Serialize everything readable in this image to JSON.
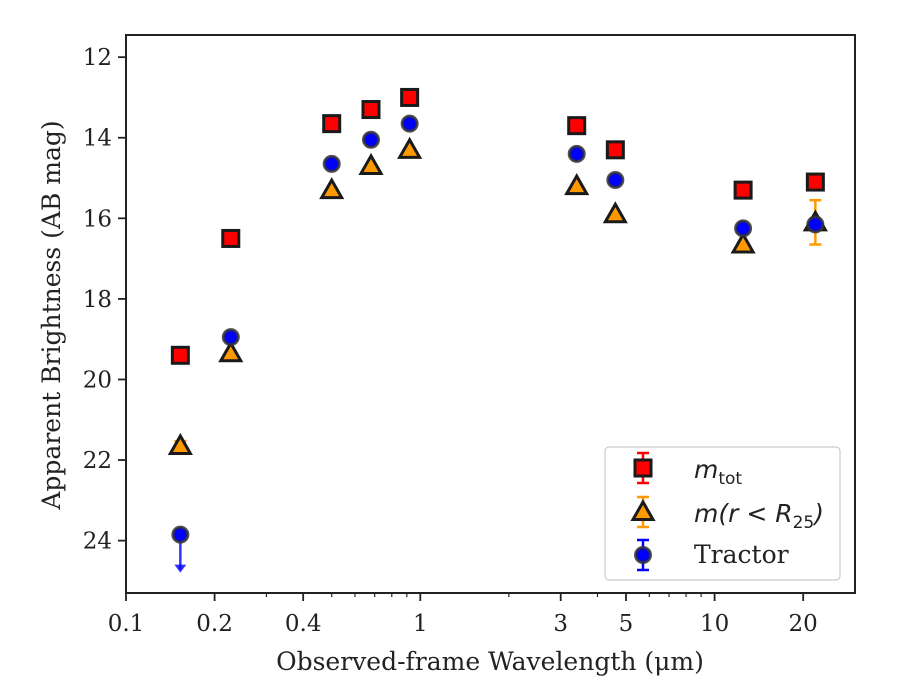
{
  "chart_data": {
    "type": "scatter",
    "title": "",
    "xlabel": "Observed-frame Wavelength (μm)",
    "ylabel": "Apparent Brightness (AB mag)",
    "xscale": "log",
    "xlim": [
      0.1,
      30
    ],
    "ylim": [
      25.3,
      11.45
    ],
    "y_inverted": true,
    "grid": false,
    "legend_position": "lower-right",
    "x_ticks": [
      0.1,
      0.2,
      0.4,
      1,
      3,
      5,
      10,
      20
    ],
    "x_tick_labels": [
      "0.1",
      "0.2",
      "0.4",
      "1",
      "3",
      "5",
      "10",
      "20"
    ],
    "y_ticks": [
      12,
      14,
      16,
      18,
      20,
      22,
      24
    ],
    "y_tick_labels": [
      "12",
      "14",
      "16",
      "18",
      "20",
      "22",
      "24"
    ],
    "series": [
      {
        "name": "m_tot",
        "marker": "square",
        "color": "#ff0000",
        "edge_color": "#1a1a1a",
        "points": [
          {
            "x": 0.153,
            "y": 19.4,
            "yerr": 0.05
          },
          {
            "x": 0.227,
            "y": 16.5,
            "yerr": 0.05
          },
          {
            "x": 0.5,
            "y": 13.65,
            "yerr": 0.03
          },
          {
            "x": 0.68,
            "y": 13.3,
            "yerr": 0.03
          },
          {
            "x": 0.92,
            "y": 13.0,
            "yerr": 0.03
          },
          {
            "x": 3.4,
            "y": 13.7,
            "yerr": 0.03
          },
          {
            "x": 4.6,
            "y": 14.3,
            "yerr": 0.03
          },
          {
            "x": 12.5,
            "y": 15.3,
            "yerr": 0.05
          },
          {
            "x": 22.0,
            "y": 15.1,
            "yerr": 0.08
          }
        ]
      },
      {
        "name": "m(r < R_25)",
        "marker": "triangle",
        "color": "#ff9900",
        "edge_color": "#1a1a1a",
        "points": [
          {
            "x": 0.153,
            "y": 21.65,
            "yerr": 0.12
          },
          {
            "x": 0.227,
            "y": 19.35,
            "yerr": 0.05
          },
          {
            "x": 0.5,
            "y": 15.3,
            "yerr": 0.03
          },
          {
            "x": 0.68,
            "y": 14.7,
            "yerr": 0.03
          },
          {
            "x": 0.92,
            "y": 14.3,
            "yerr": 0.03
          },
          {
            "x": 3.4,
            "y": 15.2,
            "yerr": 0.03
          },
          {
            "x": 4.6,
            "y": 15.9,
            "yerr": 0.03
          },
          {
            "x": 12.5,
            "y": 16.65,
            "yerr": 0.05
          },
          {
            "x": 22.0,
            "y": 16.1,
            "yerr": 0.55
          }
        ]
      },
      {
        "name": "Tractor",
        "marker": "circle",
        "color": "#0000ff",
        "edge_color": "#333333",
        "points": [
          {
            "x": 0.153,
            "y": 23.85,
            "upper_limit": true
          },
          {
            "x": 0.227,
            "y": 18.95,
            "yerr": 0.05
          },
          {
            "x": 0.5,
            "y": 14.65,
            "yerr": 0.03
          },
          {
            "x": 0.68,
            "y": 14.05,
            "yerr": 0.03
          },
          {
            "x": 0.92,
            "y": 13.65,
            "yerr": 0.03
          },
          {
            "x": 3.4,
            "y": 14.4,
            "yerr": 0.03
          },
          {
            "x": 4.6,
            "y": 15.05,
            "yerr": 0.03
          },
          {
            "x": 12.5,
            "y": 16.25,
            "yerr": 0.05
          },
          {
            "x": 22.0,
            "y": 16.15,
            "yerr": 0.08
          }
        ]
      }
    ]
  },
  "legend": {
    "items": [
      {
        "symbol": "m",
        "sub": "tot",
        "rest": ""
      },
      {
        "symbol": "m",
        "sub": "",
        "rest": "(r < R",
        "sub2": "25",
        "close": ")"
      },
      {
        "label": "Tractor"
      }
    ]
  },
  "colors": {
    "axes": "#222222",
    "legend_border": "#cccccc"
  }
}
